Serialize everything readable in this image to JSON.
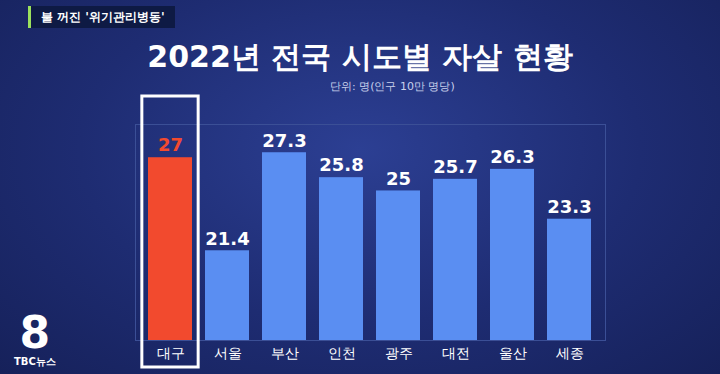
{
  "chart_data": {
    "type": "bar",
    "title": "2022년 전국 시도별 자살 현황",
    "subtitle": "단위: 명(인구 10만 명당)",
    "categories": [
      "대구",
      "서울",
      "부산",
      "인천",
      "광주",
      "대전",
      "울산",
      "세종"
    ],
    "values": [
      27,
      21.4,
      27.3,
      25.8,
      25,
      25.7,
      26.3,
      23.3
    ],
    "colors": [
      "#f24a2e",
      "#5a8ef2",
      "#5a8ef2",
      "#5a8ef2",
      "#5a8ef2",
      "#5a8ef2",
      "#5a8ef2",
      "#5a8ef2"
    ],
    "ylim": [
      16,
      29
    ],
    "data_labels": true,
    "tick_labels": "x",
    "grid": false
  },
  "overlay": {
    "tag": "불 꺼진 '위기관리병동'",
    "logo": [
      "8",
      "TBC뉴스"
    ]
  }
}
